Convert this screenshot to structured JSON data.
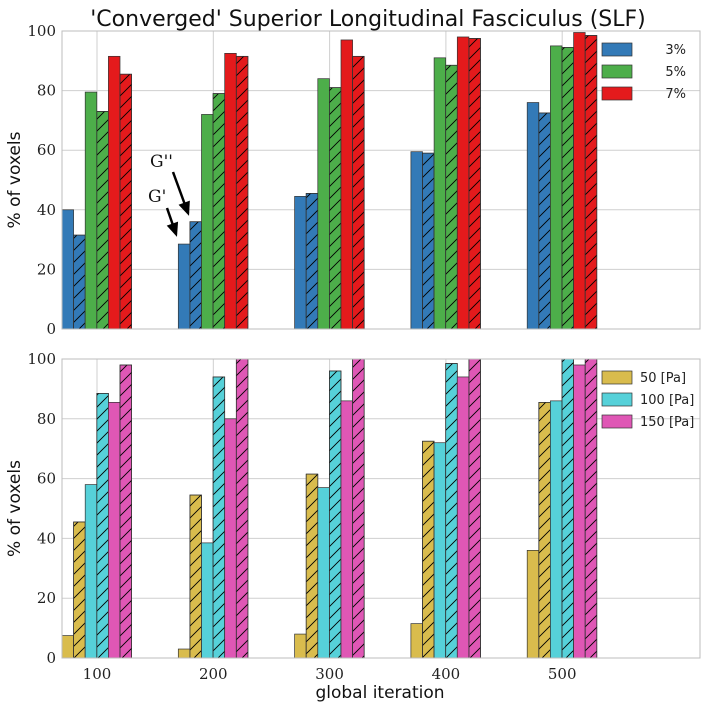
{
  "chart_data": {
    "type": "bar",
    "title": "'Converged' Superior Longitudinal Fasciculus (SLF)",
    "xlabel": "global iteration",
    "categories": [
      "100",
      "200",
      "300",
      "400",
      "500"
    ],
    "panels": [
      {
        "ylabel": "% of voxels",
        "ylim": [
          0,
          100
        ],
        "yticks": [
          0,
          20,
          40,
          60,
          80,
          100
        ],
        "legend": "top-right",
        "series": [
          {
            "name": "3%",
            "color": "#337ab7",
            "values": [
              [
                40,
                31.5
              ],
              [
                28.5,
                36
              ],
              [
                44.5,
                45.5
              ],
              [
                59.5,
                59
              ],
              [
                76,
                72.5
              ]
            ]
          },
          {
            "name": "5%",
            "color": "#4dae4a",
            "values": [
              [
                79.5,
                73
              ],
              [
                72,
                79
              ],
              [
                84,
                81
              ],
              [
                91,
                88.5
              ],
              [
                95,
                94.5
              ]
            ]
          },
          {
            "name": "7%",
            "color": "#e41a1c",
            "values": [
              [
                91.5,
                85.5
              ],
              [
                92.5,
                91.5
              ],
              [
                97,
                91.5
              ],
              [
                98,
                97.5
              ],
              [
                99.5,
                98.5
              ]
            ]
          }
        ],
        "annotations": [
          {
            "text": "G''"
          },
          {
            "text": "G'"
          }
        ]
      },
      {
        "ylabel": "% of voxels",
        "ylim": [
          0,
          100
        ],
        "yticks": [
          0,
          20,
          40,
          60,
          80,
          100
        ],
        "legend": "top-right",
        "series": [
          {
            "name": "50 [Pa]",
            "color": "#d9bc4d",
            "values": [
              [
                7.5,
                45.5
              ],
              [
                3,
                54.5
              ],
              [
                8,
                61.5
              ],
              [
                11.5,
                72.5
              ],
              [
                36,
                85.5
              ]
            ]
          },
          {
            "name": "100 [Pa]",
            "color": "#56d1d9",
            "values": [
              [
                58,
                88.5
              ],
              [
                38.5,
                94
              ],
              [
                57,
                96
              ],
              [
                72,
                98.5
              ],
              [
                86,
                100
              ]
            ]
          },
          {
            "name": "150 [Pa]",
            "color": "#df57b5",
            "values": [
              [
                85.5,
                98
              ],
              [
                80,
                100
              ],
              [
                86,
                100
              ],
              [
                94,
                100
              ],
              [
                98,
                100
              ]
            ]
          }
        ]
      }
    ]
  }
}
